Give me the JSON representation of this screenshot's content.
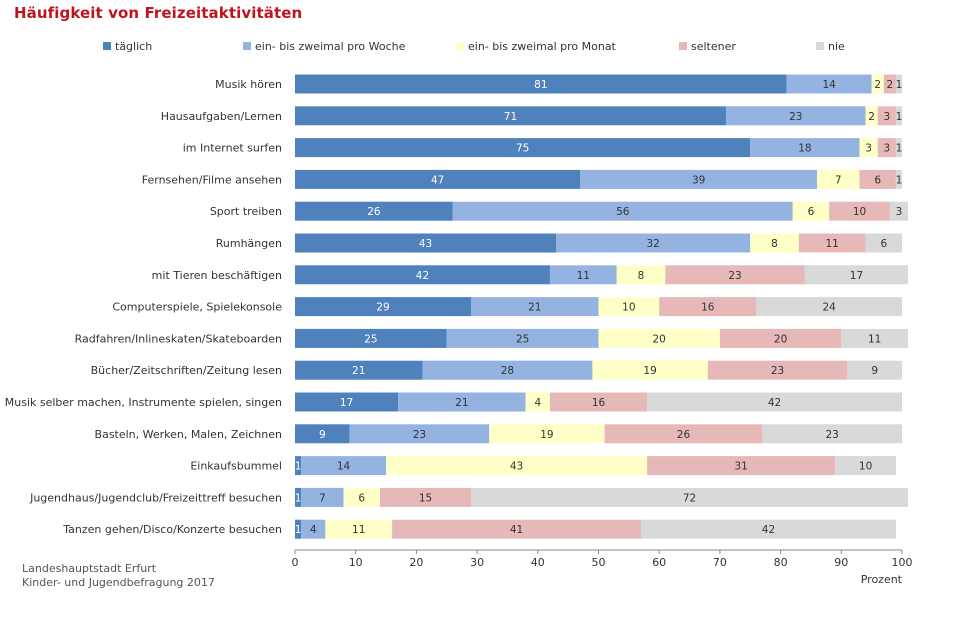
{
  "title": "Häufigkeit von Freizeitaktivitäten",
  "source": {
    "line1": "Landeshauptstadt Erfurt",
    "line2": "Kinder- und Jugendbefragung 2017"
  },
  "colors": {
    "täglich": "#4f81bd",
    "ein- bis zweimal pro Woche": "#95b3e0",
    "ein- bis zweimal pro Monat": "#ffffc8",
    "seltener": "#e6b8b8",
    "nie": "#d9d9d9"
  },
  "chart_data": {
    "type": "bar",
    "orientation": "horizontal",
    "stacked": true,
    "categories": [
      "Musik hören",
      "Hausaufgaben/Lernen",
      "im Internet surfen",
      "Fernsehen/Filme ansehen",
      "Sport treiben",
      "Rumhängen",
      "mit Tieren beschäftigen",
      "Computerspiele, Spielekonsole",
      "Radfahren/Inlineskaten/Skateboarden",
      "Bücher/Zeitschriften/Zeitung lesen",
      "Musik selber machen, Instrumente spielen, singen",
      "Basteln, Werken, Malen, Zeichnen",
      "Einkaufsbummel",
      "Jugendhaus/Jugendclub/Freizeittreff besuchen",
      "Tanzen gehen/Disco/Konzerte besuchen"
    ],
    "series": [
      {
        "name": "täglich",
        "values": [
          81,
          71,
          75,
          47,
          26,
          43,
          42,
          29,
          25,
          21,
          17,
          9,
          1,
          1,
          1
        ]
      },
      {
        "name": "ein- bis zweimal pro Woche",
        "values": [
          14,
          23,
          18,
          39,
          56,
          32,
          11,
          21,
          25,
          28,
          21,
          23,
          14,
          7,
          4
        ]
      },
      {
        "name": "ein- bis zweimal pro Monat",
        "values": [
          2,
          2,
          3,
          7,
          6,
          8,
          8,
          10,
          20,
          19,
          4,
          19,
          43,
          6,
          11
        ]
      },
      {
        "name": "seltener",
        "values": [
          2,
          3,
          3,
          6,
          10,
          11,
          23,
          16,
          20,
          23,
          16,
          26,
          31,
          15,
          41
        ]
      },
      {
        "name": "nie",
        "values": [
          1,
          1,
          1,
          1,
          3,
          6,
          17,
          24,
          11,
          9,
          42,
          23,
          10,
          72,
          42
        ]
      }
    ],
    "xlabel": "Prozent",
    "xlim": [
      0,
      100
    ],
    "xticks": [
      0,
      10,
      20,
      30,
      40,
      50,
      60,
      70,
      80,
      90,
      100
    ],
    "legend": "top",
    "grid": false
  }
}
